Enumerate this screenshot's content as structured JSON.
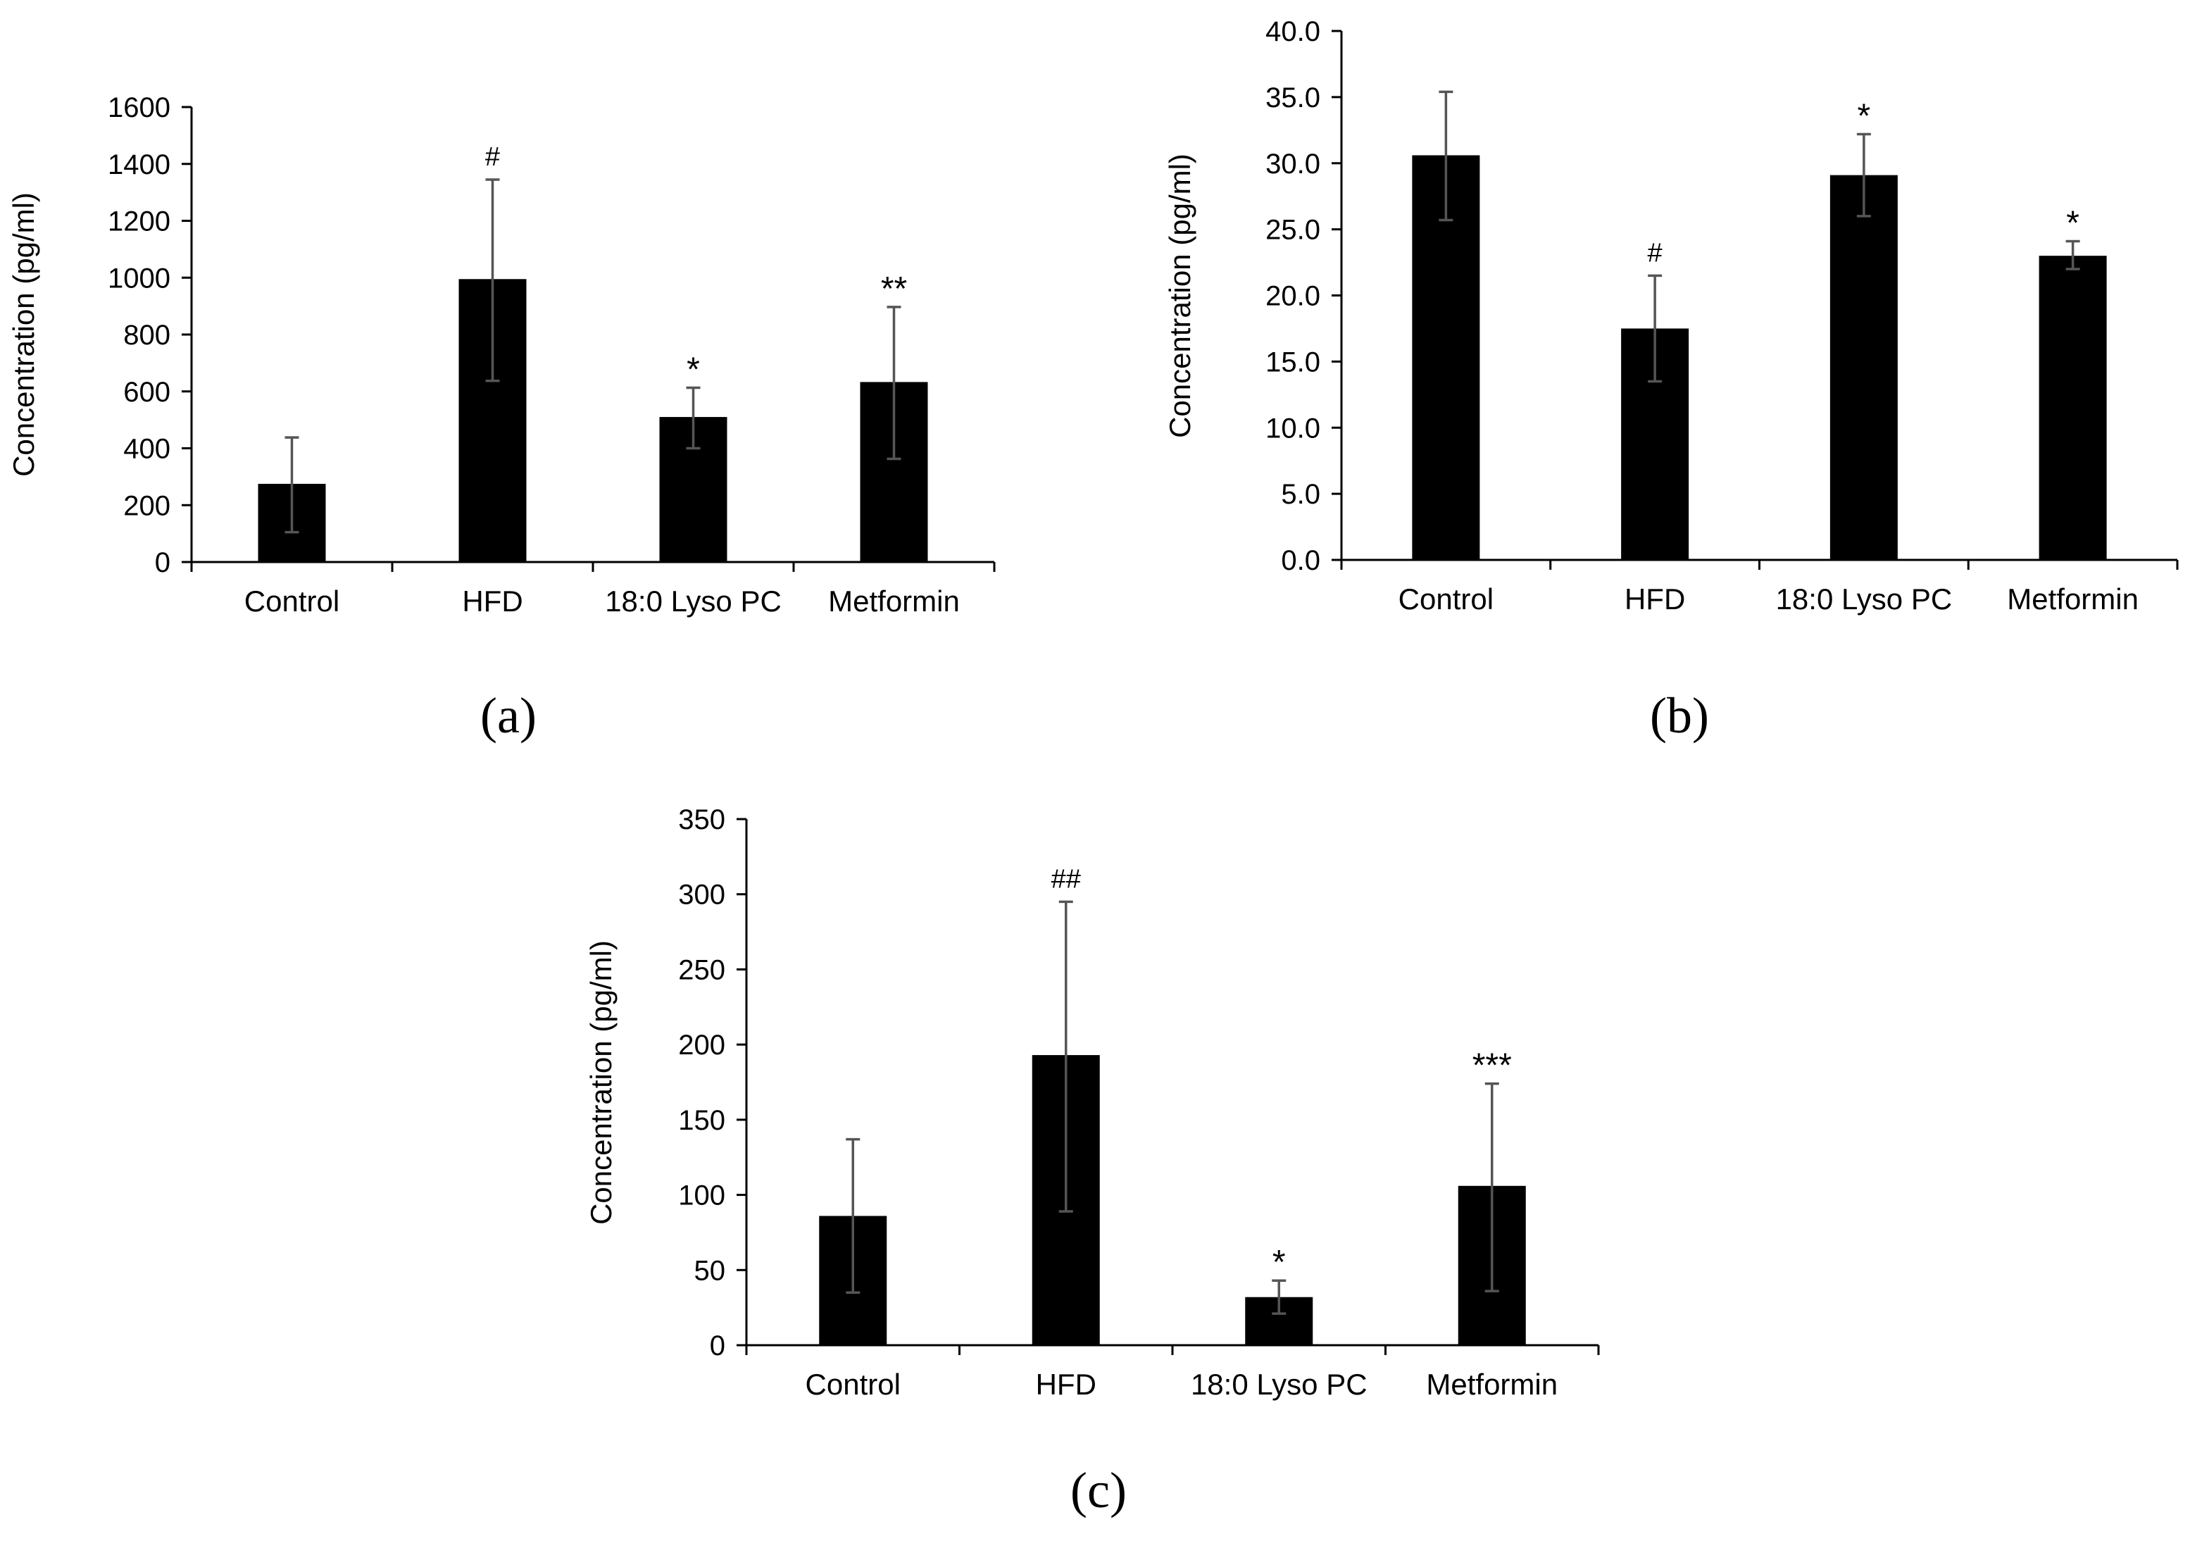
{
  "figure": {
    "panel_labels": [
      "(a)",
      "(b)",
      "(c)"
    ]
  },
  "colors": {
    "bar": "#000000",
    "axis": "#000000",
    "error_bar": "#555555"
  },
  "chart_data": [
    {
      "type": "bar",
      "panel": "(a)",
      "title": "",
      "xlabel": "",
      "ylabel": "Concentration (pg/ml)",
      "ylim": [
        0,
        1600
      ],
      "yticks": [
        0,
        200,
        400,
        600,
        800,
        1000,
        1200,
        1400,
        1600
      ],
      "ytick_labels": [
        "0",
        "200",
        "400",
        "600",
        "800",
        "1000",
        "1200",
        "1400",
        "1600"
      ],
      "grid": false,
      "categories": [
        "Control",
        "HFD",
        "18:0 Lyso PC",
        "Metformin"
      ],
      "values": [
        275,
        995,
        510,
        633
      ],
      "error_upper": [
        438,
        1345,
        613,
        897
      ],
      "error_lower": [
        105,
        637,
        400,
        363
      ],
      "annotations": [
        "",
        "#",
        "*",
        "**"
      ]
    },
    {
      "type": "bar",
      "panel": "(b)",
      "title": "",
      "xlabel": "",
      "ylabel": "Concentration (pg/ml)",
      "ylim": [
        0,
        40
      ],
      "yticks": [
        0,
        5,
        10,
        15,
        20,
        25,
        30,
        35,
        40
      ],
      "ytick_labels": [
        "0.0",
        "5.0",
        "10.0",
        "15.0",
        "20.0",
        "25.0",
        "30.0",
        "35.0",
        "40.0"
      ],
      "grid": false,
      "categories": [
        "Control",
        "HFD",
        "18:0 Lyso PC",
        "Metformin"
      ],
      "values": [
        30.6,
        17.5,
        29.1,
        23.0
      ],
      "error_upper": [
        35.4,
        21.5,
        32.2,
        24.1
      ],
      "error_lower": [
        25.7,
        13.5,
        26.0,
        22.0
      ],
      "annotations": [
        "",
        "#",
        "*",
        "*"
      ]
    },
    {
      "type": "bar",
      "panel": "(c)",
      "title": "",
      "xlabel": "",
      "ylabel": "Concentration (pg/ml)",
      "ylim": [
        0,
        350
      ],
      "yticks": [
        0,
        50,
        100,
        150,
        200,
        250,
        300,
        350
      ],
      "ytick_labels": [
        "0",
        "50",
        "100",
        "150",
        "200",
        "250",
        "300",
        "350"
      ],
      "grid": false,
      "categories": [
        "Control",
        "HFD",
        "18:0 Lyso PC",
        "Metformin"
      ],
      "values": [
        86,
        193,
        32,
        106
      ],
      "error_upper": [
        137,
        295,
        43,
        174
      ],
      "error_lower": [
        35,
        89,
        21,
        36
      ],
      "annotations": [
        "",
        "##",
        "*",
        "***"
      ]
    }
  ]
}
